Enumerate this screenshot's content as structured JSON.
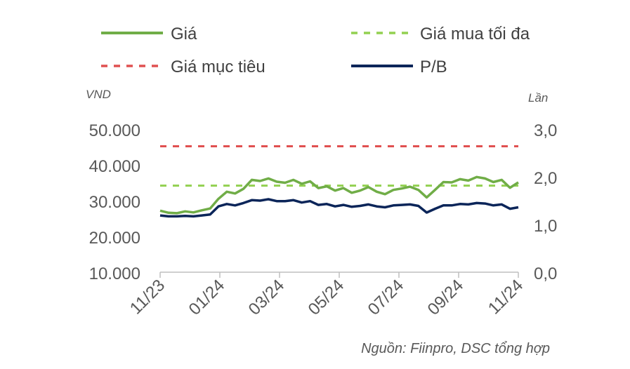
{
  "chart_data": {
    "type": "line",
    "legend": [
      {
        "name": "Giá",
        "color": "#70AD47",
        "style": "solid"
      },
      {
        "name": "Giá mua tối đa",
        "color": "#92D050",
        "style": "dashed"
      },
      {
        "name": "Giá mục tiêu",
        "color": "#E05050",
        "style": "dashed"
      },
      {
        "name": "P/B",
        "color": "#0B2559",
        "style": "solid"
      }
    ],
    "legend_placement": "top",
    "ylabel_left": "VND",
    "ylabel_right": "Lần",
    "left_axis": {
      "min": 10000,
      "max": 50000,
      "ticks": [
        "10.000",
        "20.000",
        "30.000",
        "40.000",
        "50.000"
      ]
    },
    "right_axis": {
      "min": 0,
      "max": 3,
      "ticks": [
        "0,0",
        "1,0",
        "2,0",
        "3,0"
      ]
    },
    "x_ticks": [
      "11/23",
      "01/24",
      "03/24",
      "05/24",
      "07/24",
      "09/24",
      "11/24"
    ],
    "grid": false,
    "source": "Nguồn: Fiinpro, DSC tổng hợp",
    "series": [
      {
        "name": "Giá",
        "axis": "left",
        "x": [
          "11/23",
          "11/23",
          "12/23",
          "12/23",
          "12/23",
          "12/23",
          "01/24",
          "01/24",
          "01/24",
          "01/24",
          "02/24",
          "02/24",
          "02/24",
          "03/24",
          "03/24",
          "03/24",
          "04/24",
          "04/24",
          "04/24",
          "04/24",
          "05/24",
          "05/24",
          "05/24",
          "05/24",
          "06/24",
          "06/24",
          "06/24",
          "07/24",
          "07/24",
          "07/24",
          "07/24",
          "08/24",
          "08/24",
          "08/24",
          "08/24",
          "09/24",
          "09/24",
          "09/24",
          "10/24",
          "10/24",
          "10/24",
          "10/24",
          "11/24",
          "11/24"
        ],
        "values": [
          27200,
          26600,
          26500,
          27000,
          26700,
          27300,
          27800,
          30500,
          32500,
          32000,
          33300,
          35800,
          35500,
          36200,
          35300,
          35000,
          35800,
          34700,
          35400,
          33500,
          34000,
          32800,
          33500,
          32200,
          32800,
          33800,
          32500,
          31800,
          33000,
          33400,
          33900,
          33000,
          30900,
          33000,
          35200,
          35100,
          36000,
          35600,
          36600,
          36200,
          35200,
          35800,
          33600,
          35100
        ]
      },
      {
        "name": "Giá mua tối đa",
        "axis": "left",
        "x": [
          "11/23",
          "11/24"
        ],
        "values": [
          34200,
          34200
        ]
      },
      {
        "name": "Giá mục tiêu",
        "axis": "left",
        "x": [
          "11/23",
          "11/24"
        ],
        "values": [
          45200,
          45200
        ]
      },
      {
        "name": "P/B",
        "axis": "right",
        "x": [
          "11/23",
          "11/23",
          "12/23",
          "12/23",
          "12/23",
          "12/23",
          "01/24",
          "01/24",
          "01/24",
          "01/24",
          "02/24",
          "02/24",
          "02/24",
          "03/24",
          "03/24",
          "03/24",
          "04/24",
          "04/24",
          "04/24",
          "04/24",
          "05/24",
          "05/24",
          "05/24",
          "05/24",
          "06/24",
          "06/24",
          "06/24",
          "07/24",
          "07/24",
          "07/24",
          "07/24",
          "08/24",
          "08/24",
          "08/24",
          "08/24",
          "09/24",
          "09/24",
          "09/24",
          "10/24",
          "10/24",
          "10/24",
          "10/24",
          "11/24",
          "11/24"
        ],
        "values": [
          1.19,
          1.17,
          1.17,
          1.18,
          1.17,
          1.19,
          1.21,
          1.38,
          1.43,
          1.4,
          1.45,
          1.51,
          1.5,
          1.53,
          1.49,
          1.49,
          1.51,
          1.46,
          1.49,
          1.41,
          1.43,
          1.38,
          1.41,
          1.37,
          1.39,
          1.42,
          1.38,
          1.36,
          1.4,
          1.41,
          1.42,
          1.39,
          1.25,
          1.33,
          1.4,
          1.4,
          1.43,
          1.42,
          1.45,
          1.44,
          1.4,
          1.42,
          1.33,
          1.36
        ]
      }
    ]
  }
}
